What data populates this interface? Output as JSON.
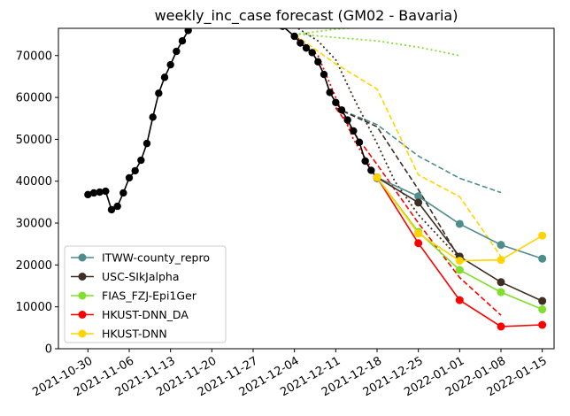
{
  "chart_data": {
    "type": "line",
    "title": "weekly_inc_case forecast (GM02 - Bavaria)",
    "xlabel": "",
    "ylabel": "",
    "x_ticks": [
      "2021-10-30",
      "2021-11-06",
      "2021-11-13",
      "2021-11-20",
      "2021-11-27",
      "2021-12-04",
      "2021-12-11",
      "2021-12-18",
      "2021-12-25",
      "2022-01-01",
      "2022-01-08",
      "2022-01-15"
    ],
    "y_ticks": [
      0,
      10000,
      20000,
      30000,
      40000,
      50000,
      60000,
      70000
    ],
    "ylim": [
      0,
      76500
    ],
    "xlim": [
      "2021-10-25",
      "2022-01-17"
    ],
    "grid": false,
    "legend_position": "lower-left",
    "observed": {
      "color": "#000000",
      "points": [
        [
          "2021-10-30",
          36800
        ],
        [
          "2021-10-31",
          37200
        ],
        [
          "2021-11-01",
          37400
        ],
        [
          "2021-11-02",
          37600
        ],
        [
          "2021-11-03",
          33200
        ],
        [
          "2021-11-04",
          34000
        ],
        [
          "2021-11-05",
          37200
        ],
        [
          "2021-11-06",
          40800
        ],
        [
          "2021-11-07",
          42500
        ],
        [
          "2021-11-08",
          45000
        ],
        [
          "2021-11-09",
          49000
        ],
        [
          "2021-11-10",
          55300
        ],
        [
          "2021-11-11",
          61000
        ],
        [
          "2021-11-12",
          64800
        ],
        [
          "2021-11-13",
          67800
        ],
        [
          "2021-11-14",
          71000
        ],
        [
          "2021-11-15",
          73500
        ],
        [
          "2021-11-16",
          76000
        ],
        [
          "2021-11-17",
          77500
        ],
        [
          "2021-11-18",
          79000
        ],
        [
          "2021-11-29",
          80000
        ],
        [
          "2021-11-30",
          79000
        ],
        [
          "2021-12-01",
          78000
        ],
        [
          "2021-12-02",
          77000
        ],
        [
          "2021-12-04",
          74600
        ],
        [
          "2021-12-05",
          73000
        ],
        [
          "2021-12-06",
          71800
        ],
        [
          "2021-12-07",
          70700
        ],
        [
          "2021-12-08",
          68500
        ],
        [
          "2021-12-09",
          65500
        ],
        [
          "2021-12-10",
          61200
        ],
        [
          "2021-12-11",
          58800
        ],
        [
          "2021-12-12",
          57000
        ],
        [
          "2021-12-13",
          54600
        ],
        [
          "2021-12-14",
          52000
        ],
        [
          "2021-12-15",
          49300
        ],
        [
          "2021-12-16",
          44800
        ],
        [
          "2021-12-17",
          42600
        ],
        [
          "2021-12-18",
          40700
        ]
      ]
    },
    "series": [
      {
        "name": "ITWW-county_repro",
        "color": "#4f8c8c",
        "x": [
          "2021-12-18",
          "2021-12-25",
          "2022-01-01",
          "2022-01-08",
          "2022-01-15"
        ],
        "values": [
          40900,
          36400,
          29800,
          24800,
          21500
        ],
        "dashed": [
          {
            "x": [
              "2021-12-11",
              "2021-12-18",
              "2021-12-25",
              "2022-01-01",
              "2022-01-08"
            ],
            "y": [
              57500,
              53500,
              46000,
              40700,
              37300
            ]
          }
        ]
      },
      {
        "name": "USC-SIkJalpha",
        "color": "#3d2e24",
        "x": [
          "2021-12-18",
          "2021-12-25",
          "2022-01-01",
          "2022-01-08",
          "2022-01-15"
        ],
        "values": [
          40900,
          34900,
          22000,
          15900,
          11400
        ],
        "dashed": [
          {
            "x": [
              "2021-12-11",
              "2021-12-18",
              "2021-12-25",
              "2022-01-01"
            ],
            "y": [
              57500,
              53000,
              38000,
              21500
            ]
          }
        ],
        "dotted": [
          {
            "x": [
              "2021-12-04",
              "2021-12-08",
              "2021-12-11",
              "2021-12-14",
              "2021-12-18",
              "2021-12-21",
              "2021-12-25",
              "2022-01-01"
            ],
            "y": [
              77000,
              73500,
              69000,
              60000,
              49000,
              40000,
              32000,
              21500
            ]
          }
        ]
      },
      {
        "name": "FIAS_FZJ-Epi1Ger",
        "color": "#7fdf2a",
        "x": [
          "2021-12-18",
          "2021-12-25",
          "2022-01-01",
          "2022-01-08",
          "2022-01-15"
        ],
        "values": [
          40900,
          27900,
          18800,
          13500,
          9400
        ],
        "dotted": [
          {
            "x": [
              "2021-12-04",
              "2021-12-11",
              "2021-12-18",
              "2021-12-25",
              "2022-01-01"
            ],
            "y": [
              75200,
              74300,
              73500,
              72000,
              70000
            ]
          },
          {
            "x": [
              "2021-12-04",
              "2021-12-11",
              "2021-12-18"
            ],
            "y": [
              75000,
              76300,
              77000
            ]
          }
        ]
      },
      {
        "name": "HKUST-DNN_DA",
        "color": "#ff0000",
        "x": [
          "2021-12-18",
          "2021-12-25",
          "2022-01-01",
          "2022-01-08",
          "2022-01-15"
        ],
        "values": [
          40900,
          25200,
          11600,
          5300,
          5700
        ],
        "dashed": [
          {
            "x": [
              "2021-12-11",
              "2021-12-18",
              "2021-12-25",
              "2022-01-01",
              "2022-01-08"
            ],
            "y": [
              57500,
              44000,
              30000,
              17000,
              8000
            ]
          }
        ],
        "dotted": [
          {
            "x": [
              "2021-12-04",
              "2021-12-08",
              "2021-12-11",
              "2021-12-14",
              "2021-12-18"
            ],
            "y": [
              74800,
              70000,
              60000,
              50000,
              41000
            ]
          }
        ]
      },
      {
        "name": "HKUST-DNN",
        "color": "#ffd400",
        "x": [
          "2021-12-18",
          "2021-12-25",
          "2022-01-01",
          "2022-01-08",
          "2022-01-15"
        ],
        "values": [
          40900,
          27500,
          21000,
          21200,
          27000
        ],
        "dashed": [
          {
            "x": [
              "2021-12-04",
              "2021-12-11",
              "2021-12-18",
              "2021-12-25",
              "2022-01-01",
              "2022-01-08"
            ],
            "y": [
              75000,
              68000,
              62000,
              41500,
              36300,
              22000
            ]
          }
        ]
      }
    ]
  }
}
